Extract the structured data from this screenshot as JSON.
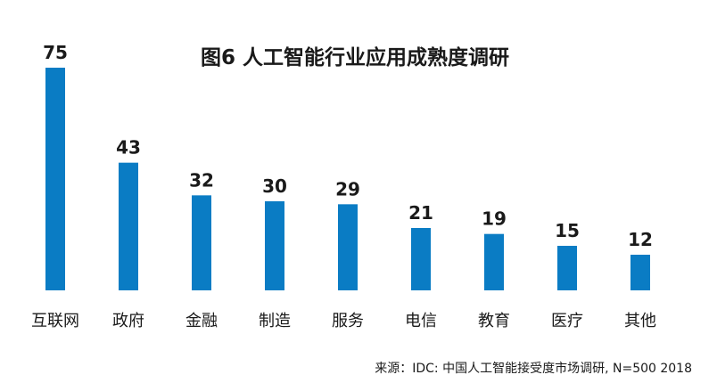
{
  "chart_data": {
    "type": "bar",
    "title": "图6 人工智能行业应用成熟度调研",
    "categories": [
      "互联网",
      "政府",
      "金融",
      "制造",
      "服务",
      "电信",
      "教育",
      "医疗",
      "其他"
    ],
    "values": [
      75,
      43,
      32,
      30,
      29,
      21,
      19,
      15,
      12
    ],
    "xlabel": "",
    "ylabel": "",
    "ylim": [
      0,
      75
    ],
    "grid": false,
    "legend": "none",
    "source": "来源：IDC: 中国人工智能接受度市场调研, N=500  2018",
    "bar_color": "#0a7cc4"
  }
}
